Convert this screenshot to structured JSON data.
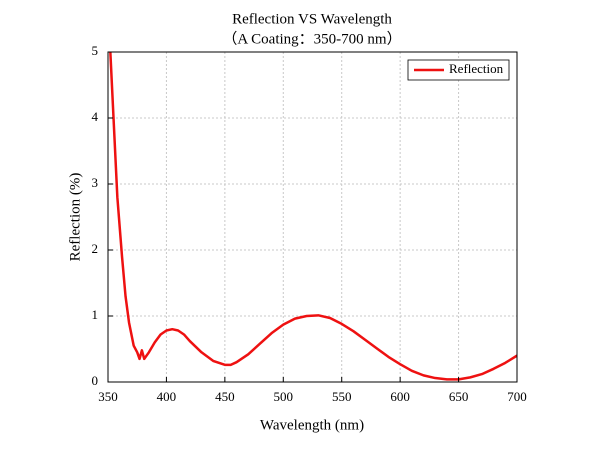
{
  "chart_data": {
    "type": "line",
    "title": "Reflection VS Wavelength",
    "subtitle": "（A Coating：350-700 nm）",
    "x_label": "Wavelength (nm)",
    "y_label": "Reflection (%)",
    "x": [
      352,
      355,
      358,
      362,
      365,
      368,
      372,
      375,
      377,
      379,
      381,
      385,
      390,
      395,
      400,
      405,
      410,
      415,
      420,
      430,
      440,
      450,
      455,
      460,
      470,
      480,
      490,
      500,
      510,
      520,
      530,
      540,
      550,
      560,
      570,
      580,
      590,
      600,
      610,
      620,
      630,
      640,
      650,
      660,
      670,
      680,
      690,
      700
    ],
    "series": [
      {
        "name": "Reflection",
        "color": "#ee1111",
        "values": [
          5.0,
          3.9,
          2.8,
          1.9,
          1.3,
          0.9,
          0.55,
          0.45,
          0.35,
          0.48,
          0.35,
          0.45,
          0.6,
          0.72,
          0.78,
          0.8,
          0.78,
          0.72,
          0.62,
          0.45,
          0.32,
          0.26,
          0.26,
          0.3,
          0.42,
          0.58,
          0.74,
          0.87,
          0.96,
          1.0,
          1.01,
          0.97,
          0.88,
          0.77,
          0.64,
          0.51,
          0.38,
          0.27,
          0.17,
          0.1,
          0.06,
          0.04,
          0.04,
          0.07,
          0.12,
          0.2,
          0.29,
          0.4
        ]
      }
    ],
    "xlim": [
      350,
      700
    ],
    "xticks": [
      350,
      400,
      450,
      500,
      550,
      600,
      650,
      700
    ],
    "ylim": [
      0,
      5
    ],
    "yticks": [
      0,
      1,
      2,
      3,
      4,
      5
    ],
    "grid": true,
    "legend": "upper right"
  }
}
